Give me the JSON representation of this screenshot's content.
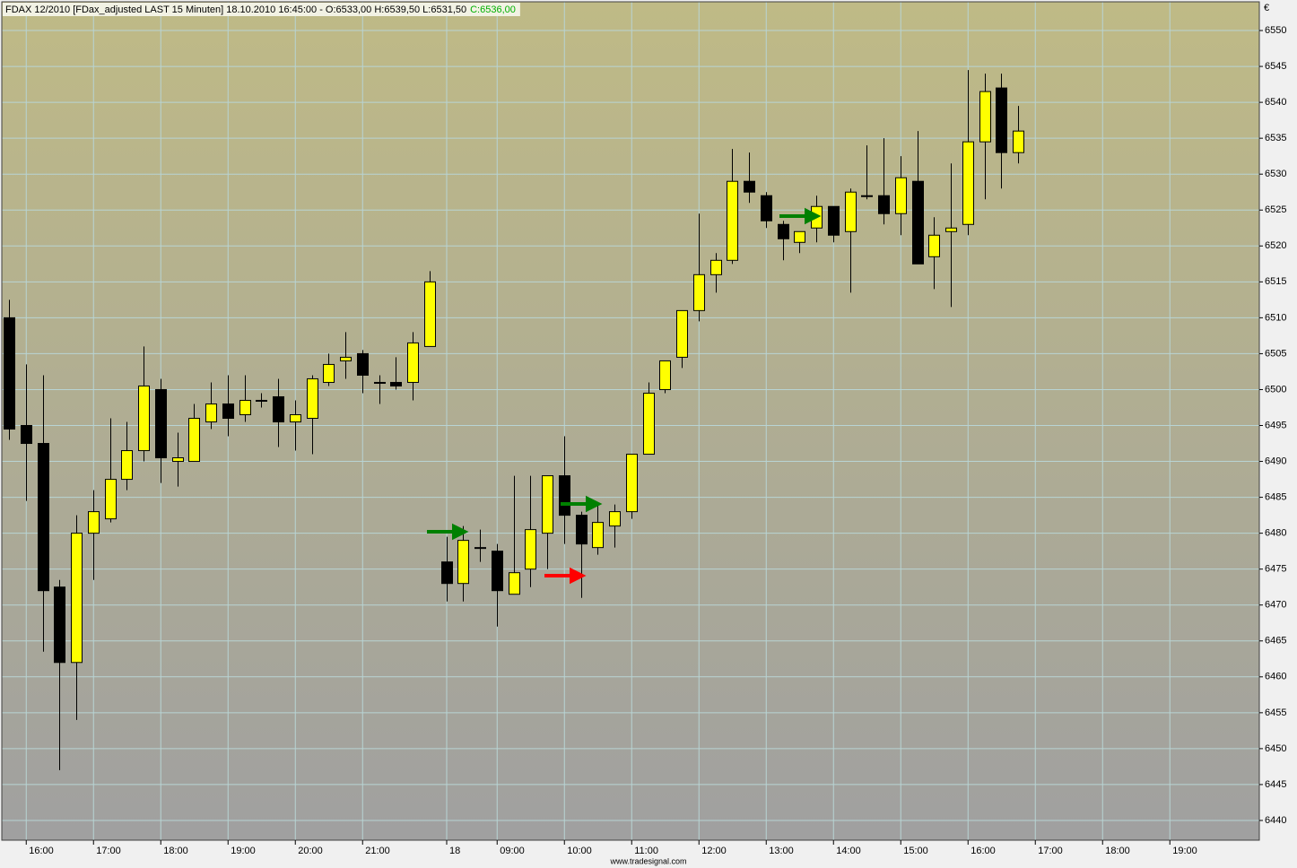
{
  "chart_data": {
    "type": "candlestick",
    "title": "FDAX 12/2010 [FDax_adjusted LAST 15 Minuten] 18.10.2010 16:45:00 - O:6533,00 H:6539,50 L:6531,50",
    "last_close_label": "C:6536,00",
    "currency": "€",
    "footer": "www.tradesignal.com",
    "up_color": "#ffff00",
    "down_color": "#000000",
    "grid": true,
    "categories": [
      null,
      "16:00",
      null,
      null,
      null,
      "17:00",
      null,
      null,
      null,
      "18:00",
      null,
      null,
      null,
      "19:00",
      null,
      null,
      null,
      "20:00",
      null,
      null,
      null,
      "21:00",
      null,
      null,
      null,
      null,
      "18",
      null,
      null,
      "09:00",
      null,
      null,
      null,
      "10:00",
      null,
      null,
      null,
      "11:00",
      null,
      null,
      null,
      "12:00",
      null,
      null,
      null,
      "13:00",
      null,
      null,
      null,
      "14:00",
      null,
      null,
      null,
      "15:00",
      null,
      null,
      null,
      "16:00",
      null,
      null,
      null,
      "17:00",
      null,
      null,
      null,
      "18:00",
      null,
      null,
      null,
      "19:00",
      null,
      null,
      null,
      null,
      null
    ],
    "open": [
      6510,
      6495,
      6492.5,
      6472.5,
      6462,
      6480,
      6482,
      6487.5,
      6491.5,
      6500,
      6490,
      6490,
      6495.5,
      6498,
      6496.5,
      6498.5,
      6499,
      6495.5,
      6496,
      6501,
      6504,
      6505,
      6501,
      6501,
      6501,
      6506,
      6476,
      6473,
      6478,
      6477.5,
      6471.5,
      6475,
      6480,
      6488,
      6482.5,
      6478,
      6481,
      6483,
      6491,
      6500,
      6504.5,
      6511,
      6516,
      6518,
      6529,
      6527,
      6523,
      6520.5,
      6522.5,
      6525.5,
      6522,
      6527,
      6527,
      6524.5,
      6529,
      6518.5,
      6522,
      6523,
      6534.5,
      6542,
      6533,
      null,
      null,
      null,
      null,
      null,
      null,
      null,
      null,
      null,
      null,
      null,
      null,
      null,
      null
    ],
    "high": [
      6512.5,
      6503.5,
      6502,
      6473.5,
      6482.5,
      6486,
      6496,
      6495.5,
      6506,
      6501.5,
      6494,
      6498,
      6501,
      6502,
      6502,
      6499.5,
      6501.5,
      6498.5,
      6502,
      6505,
      6508,
      6505.5,
      6502,
      6504.5,
      6508,
      6516.5,
      6479.5,
      6481,
      6480.5,
      6478.5,
      6488,
      6488,
      6488,
      6493.5,
      6483,
      6484,
      6484,
      6491,
      6501,
      6504,
      6511,
      6524.5,
      6519,
      6533.5,
      6533,
      6527.5,
      6523.5,
      6522,
      6527,
      6525.5,
      6528,
      6534,
      6535,
      6532.5,
      6536,
      6524,
      6531.5,
      6544.5,
      6544,
      6544,
      6539.5,
      null,
      null,
      null,
      null,
      null,
      null,
      null,
      null,
      null,
      null,
      null,
      null,
      null,
      null
    ],
    "low": [
      6493,
      6484.5,
      6463.5,
      6447,
      6454,
      6473.5,
      6481.5,
      6486,
      6490,
      6487,
      6486.5,
      6490,
      6494.5,
      6493.5,
      6495.5,
      6497.5,
      6492,
      6491.5,
      6491,
      6500.5,
      6501.5,
      6499.5,
      6498,
      6500,
      6498.5,
      6506,
      6470.5,
      6470.5,
      6476,
      6467,
      6471.5,
      6472.5,
      6475,
      6478.5,
      6471,
      6477,
      6478,
      6482,
      6491,
      6499.5,
      6503,
      6509.5,
      6513.5,
      6517.5,
      6526,
      6522.5,
      6518,
      6519,
      6520.5,
      6520.5,
      6513.5,
      6526.5,
      6523,
      6521.5,
      6517.5,
      6514,
      6511.5,
      6521.5,
      6526.5,
      6528,
      6531.5,
      null,
      null,
      null,
      null,
      null,
      null,
      null,
      null,
      null,
      null,
      null,
      null,
      null,
      null
    ],
    "close": [
      6494.5,
      6492.5,
      6472,
      6462,
      6480,
      6483,
      6487.5,
      6491.5,
      6500.5,
      6490.5,
      6490.5,
      6496,
      6498,
      6496,
      6498.5,
      6498.5,
      6495.5,
      6496.5,
      6501.5,
      6503.5,
      6504.5,
      6502,
      6501,
      6500.5,
      6506.5,
      6515,
      6473,
      6479,
      6478,
      6472,
      6474.5,
      6480.5,
      6488,
      6482.5,
      6478.5,
      6481.5,
      6483,
      6491,
      6499.5,
      6504,
      6511,
      6516,
      6518,
      6529,
      6527.5,
      6523.5,
      6521,
      6522,
      6525.5,
      6521.5,
      6527.5,
      6527,
      6524.5,
      6529.5,
      6517.5,
      6521.5,
      6522.5,
      6534.5,
      6541.5,
      6533,
      6536,
      null,
      null,
      null,
      null,
      null,
      null,
      null,
      null,
      null,
      null,
      null,
      null,
      null,
      null
    ],
    "ylim": [
      6437.25,
      6554
    ],
    "yticks": [
      6440,
      6445,
      6450,
      6455,
      6460,
      6465,
      6470,
      6475,
      6480,
      6485,
      6490,
      6495,
      6500,
      6505,
      6510,
      6515,
      6520,
      6525,
      6530,
      6535,
      6540,
      6545,
      6550
    ]
  }
}
